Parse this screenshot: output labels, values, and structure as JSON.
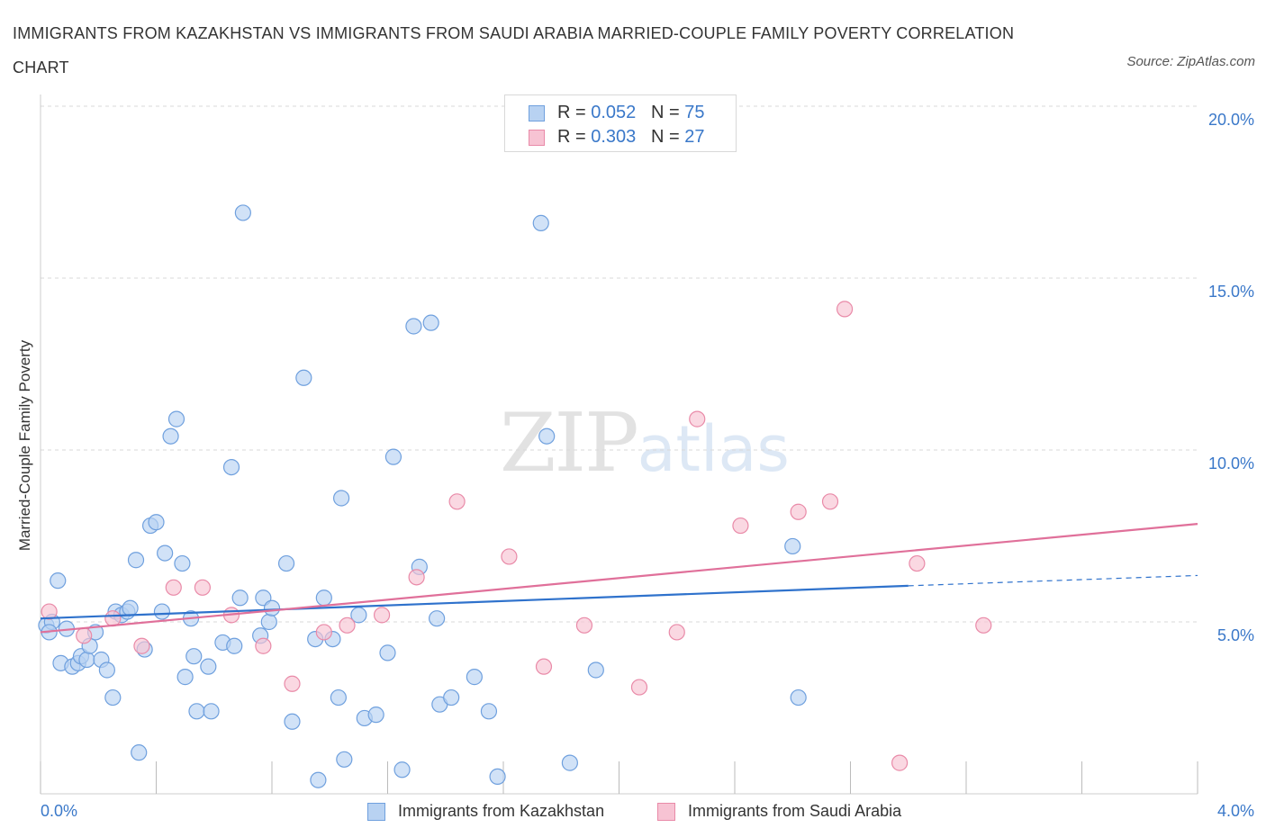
{
  "title": "IMMIGRANTS FROM KAZAKHSTAN VS IMMIGRANTS FROM SAUDI ARABIA MARRIED-COUPLE FAMILY POVERTY CORRELATION CHART",
  "source": "Source: ZipAtlas.com",
  "watermark": {
    "zip": "ZIP",
    "atlas": "atlas"
  },
  "legend_top": {
    "rows": [
      {
        "r_label": "R = ",
        "r_value": "0.052",
        "n_label": "N = ",
        "n_value": "75"
      },
      {
        "r_label": "R = ",
        "r_value": "0.303",
        "n_label": "N = ",
        "n_value": "27"
      }
    ]
  },
  "colors": {
    "kazakhstan_fill": "#b8d2f2",
    "kazakhstan_stroke": "#6fa0de",
    "kazakhstan_line": "#2f72cc",
    "saudi_fill": "#f7c3d3",
    "saudi_stroke": "#e98aa8",
    "saudi_line": "#e0709a",
    "grid": "#d9d9d9",
    "axis_text": "#3a78c9"
  },
  "chart_data": {
    "type": "scatter",
    "title": "IMMIGRANTS FROM KAZAKHSTAN VS IMMIGRANTS FROM SAUDI ARABIA MARRIED-COUPLE FAMILY POVERTY CORRELATION CHART",
    "xlabel": "",
    "ylabel": "Married-Couple Family Poverty",
    "xlim": [
      0,
      4.0
    ],
    "ylim": [
      0,
      20.0
    ],
    "x_tick_labels": [
      "0.0%",
      "4.0%"
    ],
    "y_ticks": [
      5,
      10,
      15,
      20
    ],
    "y_tick_labels": [
      "5.0%",
      "10.0%",
      "15.0%",
      "20.0%"
    ],
    "grid": true,
    "legend_position": "bottom",
    "series": [
      {
        "name": "Immigrants from Kazakhstan",
        "R": 0.052,
        "N": 75,
        "trend": {
          "x0": 0.0,
          "y0": 5.1,
          "x1": 3.0,
          "y1": 6.05,
          "dashed_to_x": 4.0,
          "dashed_to_y": 6.35
        },
        "points": [
          [
            0.02,
            4.9
          ],
          [
            0.04,
            5.0
          ],
          [
            0.06,
            6.2
          ],
          [
            0.07,
            3.8
          ],
          [
            0.09,
            4.8
          ],
          [
            0.11,
            3.7
          ],
          [
            0.13,
            3.8
          ],
          [
            0.14,
            4.0
          ],
          [
            0.16,
            3.9
          ],
          [
            0.17,
            4.3
          ],
          [
            0.19,
            4.7
          ],
          [
            0.21,
            3.9
          ],
          [
            0.23,
            3.6
          ],
          [
            0.25,
            2.8
          ],
          [
            0.26,
            5.3
          ],
          [
            0.28,
            5.2
          ],
          [
            0.3,
            5.3
          ],
          [
            0.31,
            5.4
          ],
          [
            0.33,
            6.8
          ],
          [
            0.34,
            1.2
          ],
          [
            0.36,
            4.2
          ],
          [
            0.38,
            7.8
          ],
          [
            0.4,
            7.9
          ],
          [
            0.42,
            5.3
          ],
          [
            0.43,
            7.0
          ],
          [
            0.45,
            10.4
          ],
          [
            0.47,
            10.9
          ],
          [
            0.49,
            6.7
          ],
          [
            0.5,
            3.4
          ],
          [
            0.52,
            5.1
          ],
          [
            0.53,
            4.0
          ],
          [
            0.54,
            2.4
          ],
          [
            0.58,
            3.7
          ],
          [
            0.59,
            2.4
          ],
          [
            0.63,
            4.4
          ],
          [
            0.66,
            9.5
          ],
          [
            0.67,
            4.3
          ],
          [
            0.69,
            5.7
          ],
          [
            0.7,
            16.9
          ],
          [
            0.76,
            4.6
          ],
          [
            0.77,
            5.7
          ],
          [
            0.79,
            5.0
          ],
          [
            0.8,
            5.4
          ],
          [
            0.85,
            6.7
          ],
          [
            0.87,
            2.1
          ],
          [
            0.91,
            12.1
          ],
          [
            0.95,
            4.5
          ],
          [
            0.96,
            0.4
          ],
          [
            0.98,
            5.7
          ],
          [
            1.01,
            4.5
          ],
          [
            1.03,
            2.8
          ],
          [
            1.04,
            8.6
          ],
          [
            1.05,
            1.0
          ],
          [
            1.1,
            5.2
          ],
          [
            1.12,
            2.2
          ],
          [
            1.16,
            2.3
          ],
          [
            1.2,
            4.1
          ],
          [
            1.22,
            9.8
          ],
          [
            1.25,
            0.7
          ],
          [
            1.29,
            13.6
          ],
          [
            1.31,
            6.6
          ],
          [
            1.35,
            13.7
          ],
          [
            1.37,
            5.1
          ],
          [
            1.38,
            2.6
          ],
          [
            1.42,
            2.8
          ],
          [
            1.5,
            3.4
          ],
          [
            1.55,
            2.4
          ],
          [
            1.58,
            0.5
          ],
          [
            1.73,
            16.6
          ],
          [
            1.75,
            10.4
          ],
          [
            1.83,
            0.9
          ],
          [
            1.92,
            3.6
          ],
          [
            2.6,
            7.2
          ],
          [
            2.62,
            2.8
          ],
          [
            0.03,
            4.7
          ]
        ]
      },
      {
        "name": "Immigrants from Saudi Arabia",
        "R": 0.303,
        "N": 27,
        "trend": {
          "x0": 0.0,
          "y0": 4.7,
          "x1": 4.0,
          "y1": 7.85
        },
        "points": [
          [
            0.03,
            5.3
          ],
          [
            0.15,
            4.6
          ],
          [
            0.25,
            5.1
          ],
          [
            0.35,
            4.3
          ],
          [
            0.46,
            6.0
          ],
          [
            0.56,
            6.0
          ],
          [
            0.66,
            5.2
          ],
          [
            0.77,
            4.3
          ],
          [
            0.87,
            3.2
          ],
          [
            0.98,
            4.7
          ],
          [
            1.06,
            4.9
          ],
          [
            1.18,
            5.2
          ],
          [
            1.3,
            6.3
          ],
          [
            1.44,
            8.5
          ],
          [
            1.62,
            6.9
          ],
          [
            1.74,
            3.7
          ],
          [
            1.88,
            4.9
          ],
          [
            2.07,
            3.1
          ],
          [
            2.2,
            4.7
          ],
          [
            2.27,
            10.9
          ],
          [
            2.42,
            7.8
          ],
          [
            2.62,
            8.2
          ],
          [
            2.73,
            8.5
          ],
          [
            2.78,
            14.1
          ],
          [
            2.97,
            0.9
          ],
          [
            3.03,
            6.7
          ],
          [
            3.26,
            4.9
          ]
        ]
      }
    ]
  }
}
